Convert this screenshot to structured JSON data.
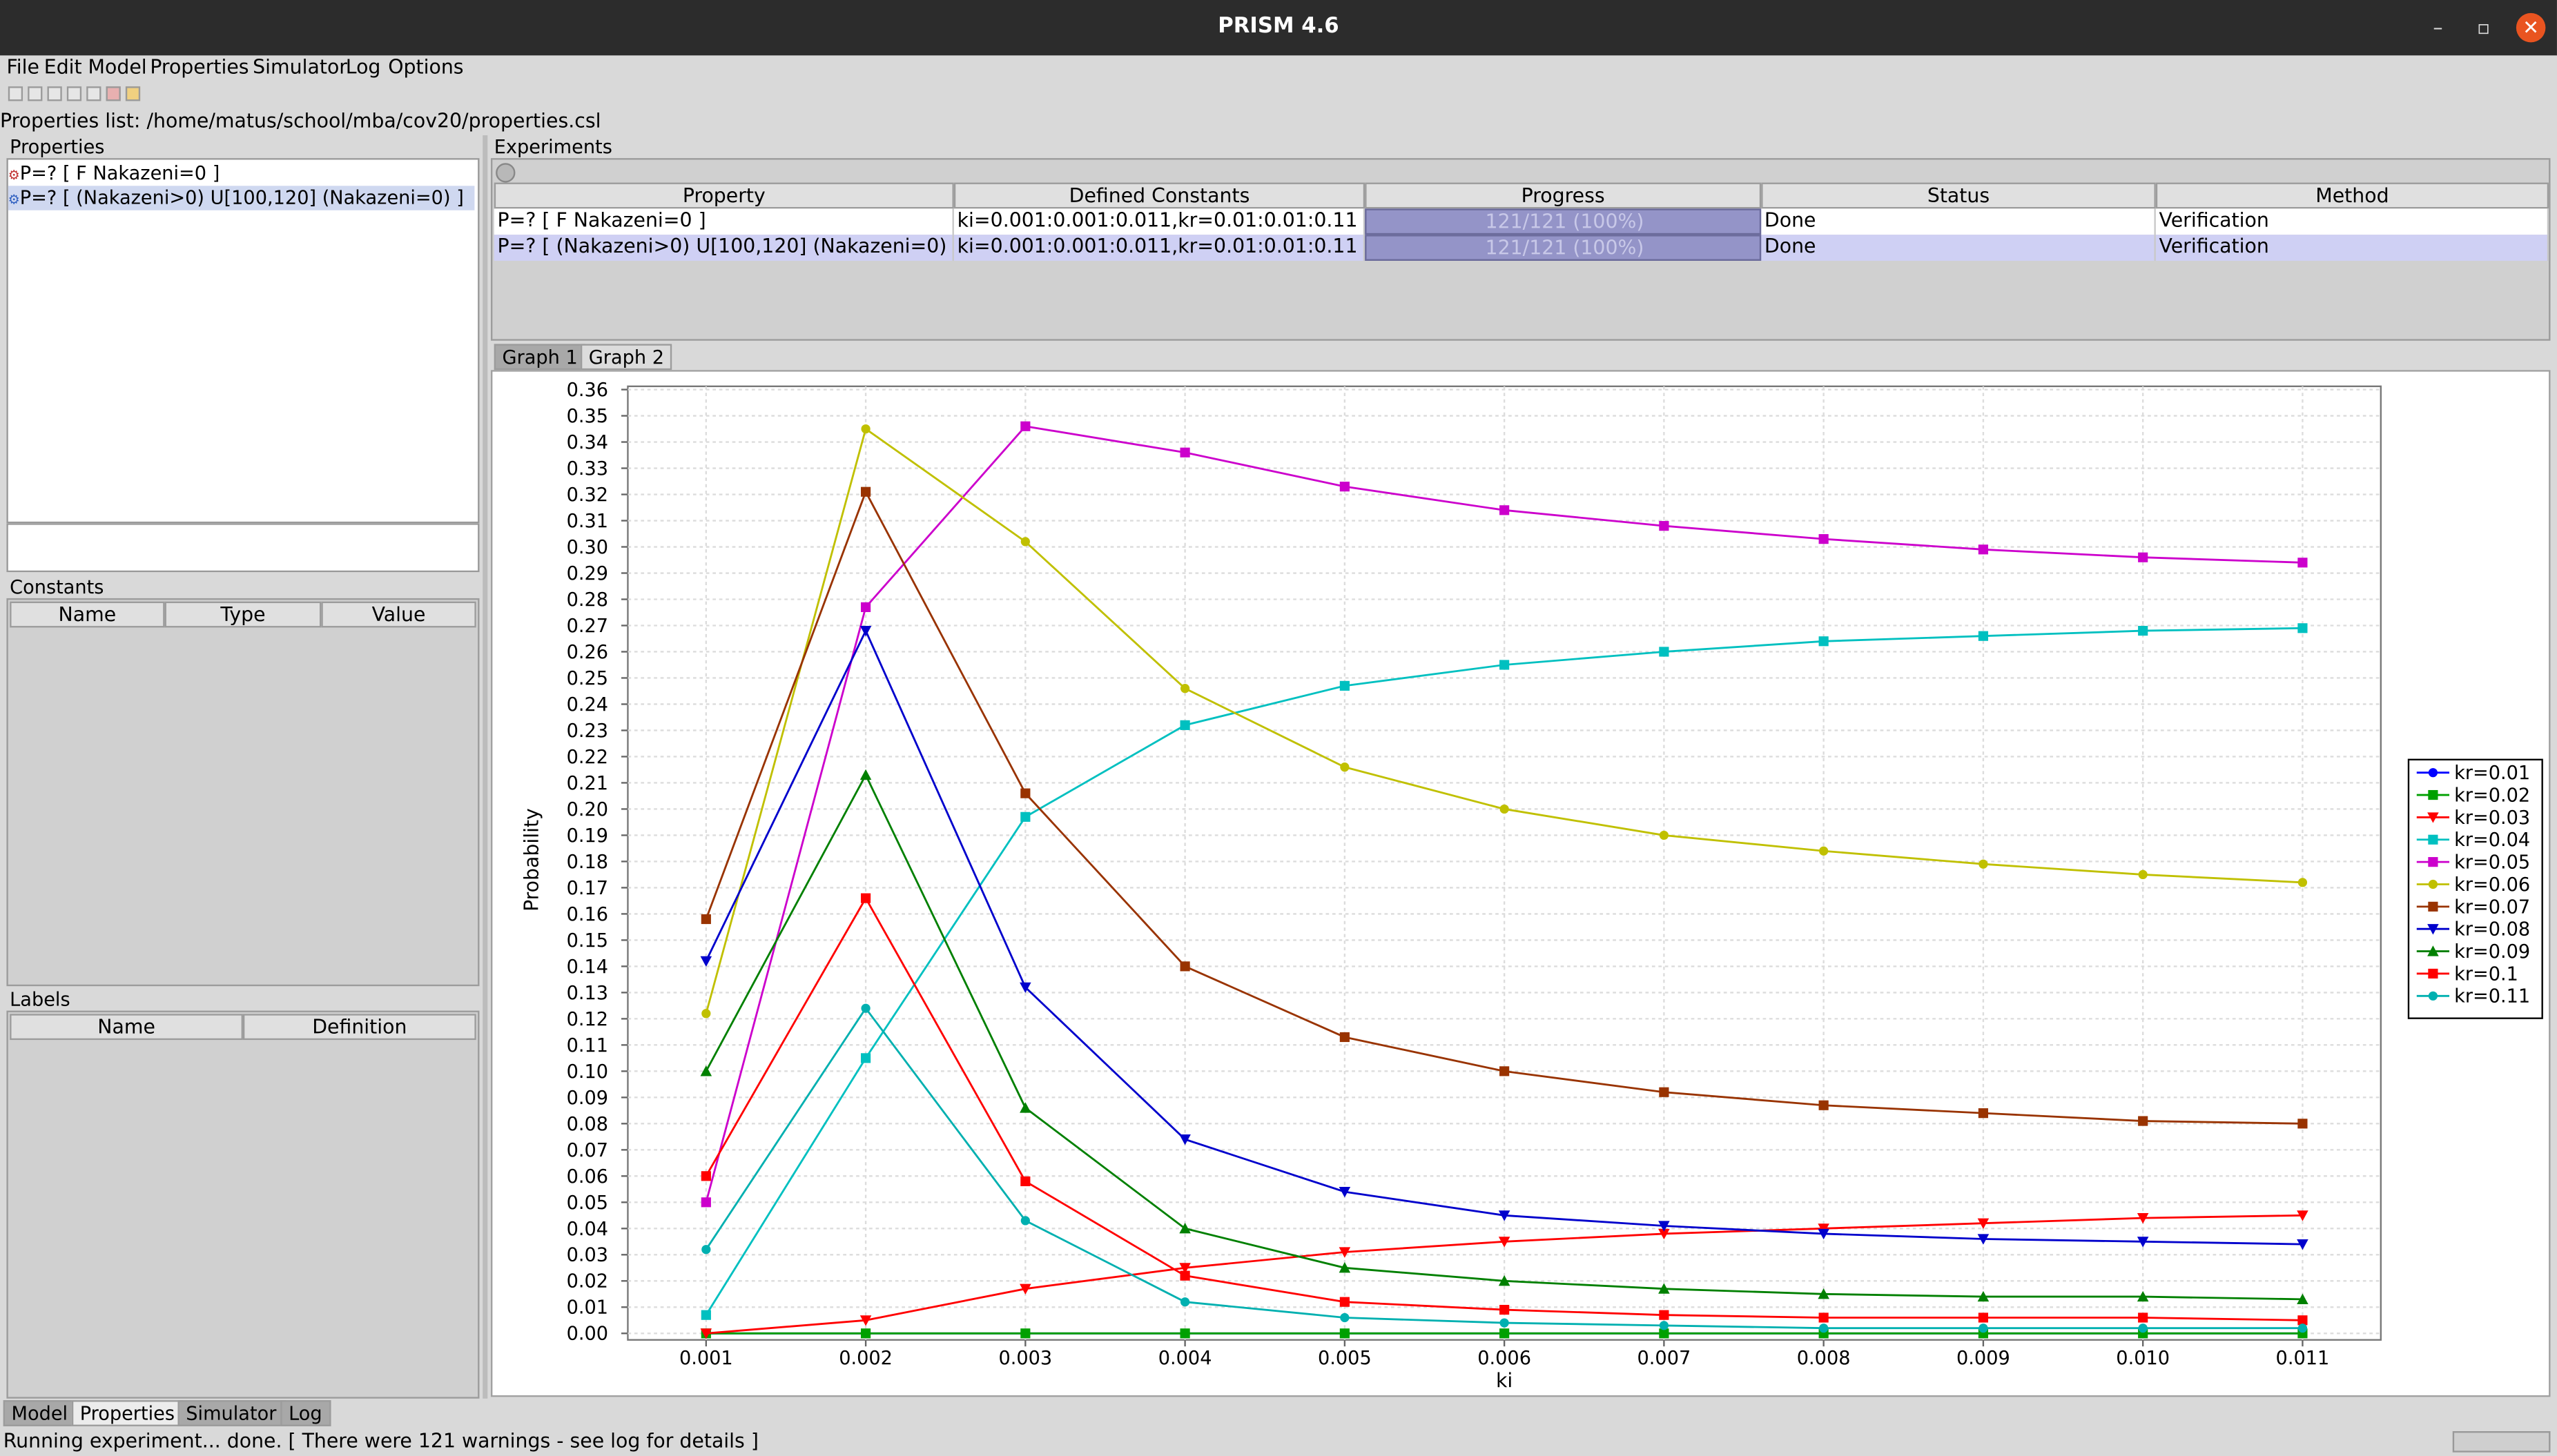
{
  "window": {
    "title": "PRISM 4.6"
  },
  "menu": [
    "File",
    "Edit",
    "Model",
    "Properties",
    "Simulator",
    "Log",
    "Options"
  ],
  "properties_list_path": "Properties list: /home/matus/school/mba/cov20/properties.csl",
  "properties_panel": {
    "title": "Properties",
    "items": [
      "P=? [ F Nakazeni=0 ]",
      "P=? [ (Nakazeni>0) U[100,120] (Nakazeni=0) ]"
    ]
  },
  "constants_panel": {
    "title": "Constants",
    "columns": [
      "Name",
      "Type",
      "Value"
    ]
  },
  "labels_panel": {
    "title": "Labels",
    "columns": [
      "Name",
      "Definition"
    ]
  },
  "experiments": {
    "title": "Experiments",
    "columns": [
      "Property",
      "Defined Constants",
      "Progress",
      "Status",
      "Method"
    ],
    "rows": [
      {
        "property": "P=? [ F Nakazeni=0 ]",
        "constants": "ki=0.001:0.001:0.011,kr=0.01:0.01:0.11",
        "progress_text": "121/121 (100%)",
        "progress": 1.0,
        "status": "Done",
        "method": "Verification"
      },
      {
        "property": "P=? [ (Nakazeni>0) U[100,120] (Nakazeni=0) ]",
        "constants": "ki=0.001:0.001:0.011,kr=0.01:0.01:0.11",
        "progress_text": "121/121 (100%)",
        "progress": 1.0,
        "status": "Done",
        "method": "Verification"
      }
    ]
  },
  "graph_tabs": [
    "Graph 1",
    "Graph 2"
  ],
  "bottom_tabs": [
    "Model",
    "Properties",
    "Simulator",
    "Log"
  ],
  "status_text": "Running experiment... done.  [ There were 121 warnings - see log for details ]",
  "chart_data": {
    "type": "line",
    "xlabel": "ki",
    "ylabel": "Probability",
    "x": [
      0.001,
      0.002,
      0.003,
      0.004,
      0.005,
      0.006,
      0.007,
      0.008,
      0.009,
      0.01,
      0.011
    ],
    "x_tick_labels": [
      "0.001",
      "0.002",
      "0.003",
      "0.004",
      "0.005",
      "0.006",
      "0.007",
      "0.008",
      "0.009",
      "0.010",
      "0.011"
    ],
    "ylim": [
      0,
      0.36
    ],
    "y_tick_labels": [
      "0.00",
      "0.01",
      "0.02",
      "0.03",
      "0.04",
      "0.05",
      "0.06",
      "0.07",
      "0.08",
      "0.09",
      "0.10",
      "0.11",
      "0.12",
      "0.13",
      "0.14",
      "0.15",
      "0.16",
      "0.17",
      "0.18",
      "0.19",
      "0.20",
      "0.21",
      "0.22",
      "0.23",
      "0.24",
      "0.25",
      "0.26",
      "0.27",
      "0.28",
      "0.29",
      "0.30",
      "0.31",
      "0.32",
      "0.33",
      "0.34",
      "0.35",
      "0.36"
    ],
    "grid": true,
    "legend_position": "right",
    "series": [
      {
        "name": "kr=0.01",
        "color": "#0000ff",
        "marker": "circle",
        "values": [
          0.0,
          0.0,
          0.0,
          0.0,
          0.0,
          0.0,
          0.0,
          0.0,
          0.0,
          0.0,
          0.0
        ]
      },
      {
        "name": "kr=0.02",
        "color": "#00a000",
        "marker": "square",
        "values": [
          0.0,
          0.0,
          0.0,
          0.0,
          0.0,
          0.0,
          0.0,
          0.0,
          0.0,
          0.0,
          0.0
        ]
      },
      {
        "name": "kr=0.03",
        "color": "#ff0000",
        "marker": "triangle-down",
        "values": [
          0.0,
          0.005,
          0.017,
          0.025,
          0.031,
          0.035,
          0.038,
          0.04,
          0.042,
          0.044,
          0.045
        ]
      },
      {
        "name": "kr=0.04",
        "color": "#00c0c0",
        "marker": "square",
        "values": [
          0.007,
          0.105,
          0.197,
          0.232,
          0.247,
          0.255,
          0.26,
          0.264,
          0.266,
          0.268,
          0.269
        ]
      },
      {
        "name": "kr=0.05",
        "color": "#cc00cc",
        "marker": "square",
        "values": [
          0.05,
          0.277,
          0.346,
          0.336,
          0.323,
          0.314,
          0.308,
          0.303,
          0.299,
          0.296,
          0.294
        ]
      },
      {
        "name": "kr=0.06",
        "color": "#c0c000",
        "marker": "circle",
        "values": [
          0.122,
          0.345,
          0.302,
          0.246,
          0.216,
          0.2,
          0.19,
          0.184,
          0.179,
          0.175,
          0.172
        ]
      },
      {
        "name": "kr=0.07",
        "color": "#993300",
        "marker": "square",
        "values": [
          0.158,
          0.321,
          0.206,
          0.14,
          0.113,
          0.1,
          0.092,
          0.087,
          0.084,
          0.081,
          0.08
        ]
      },
      {
        "name": "kr=0.08",
        "color": "#0000cc",
        "marker": "triangle-down",
        "values": [
          0.142,
          0.268,
          0.132,
          0.074,
          0.054,
          0.045,
          0.041,
          0.038,
          0.036,
          0.035,
          0.034
        ]
      },
      {
        "name": "kr=0.09",
        "color": "#008000",
        "marker": "triangle-up",
        "values": [
          0.1,
          0.213,
          0.086,
          0.04,
          0.025,
          0.02,
          0.017,
          0.015,
          0.014,
          0.014,
          0.013
        ]
      },
      {
        "name": "kr=0.1",
        "color": "#ff0000",
        "marker": "square",
        "values": [
          0.06,
          0.166,
          0.058,
          0.022,
          0.012,
          0.009,
          0.007,
          0.006,
          0.006,
          0.006,
          0.005
        ]
      },
      {
        "name": "kr=0.11",
        "color": "#00b0b0",
        "marker": "circle",
        "values": [
          0.032,
          0.124,
          0.043,
          0.012,
          0.006,
          0.004,
          0.003,
          0.002,
          0.002,
          0.002,
          0.002
        ]
      }
    ]
  }
}
